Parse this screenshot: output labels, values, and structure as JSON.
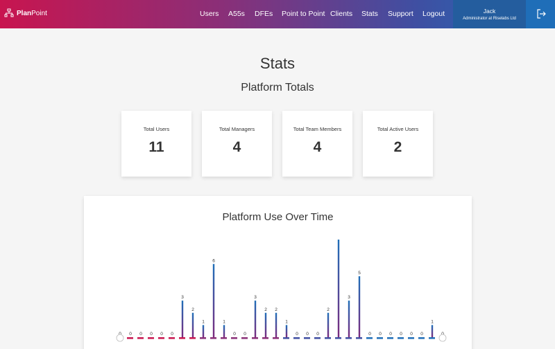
{
  "brand": {
    "bold": "Plan",
    "light": "Point"
  },
  "nav": [
    "Users",
    "A55s",
    "DFEs",
    "Point to Point",
    "Clients",
    "Stats",
    "Support",
    "Logout"
  ],
  "user": {
    "name": "Jack",
    "role": "Administrator at Riselabs Ltd"
  },
  "page": {
    "title": "Stats",
    "subtitle": "Platform Totals"
  },
  "totals": [
    {
      "label": "Total Users",
      "value": "11"
    },
    {
      "label": "Total Managers",
      "value": "4"
    },
    {
      "label": "Total Team Members",
      "value": "4"
    },
    {
      "label": "Total Active Users",
      "value": "2"
    }
  ],
  "chart_title": "Platform Use Over Time",
  "chart_data": {
    "type": "bar",
    "title": "Platform Use Over Time",
    "values": [
      0,
      0,
      0,
      0,
      0,
      0,
      3,
      2,
      1,
      6,
      1,
      0,
      0,
      3,
      2,
      2,
      1,
      0,
      0,
      0,
      2,
      8,
      3,
      5,
      0,
      0,
      0,
      0,
      0,
      0,
      1,
      0
    ],
    "ylim": [
      0,
      8
    ],
    "colors": {
      "top": "#1f6eb8",
      "bottom": "#7a2a7e",
      "accent": "#c8154f"
    }
  },
  "icons": {
    "brand": "org-chart-icon",
    "logout": "logout-icon"
  }
}
